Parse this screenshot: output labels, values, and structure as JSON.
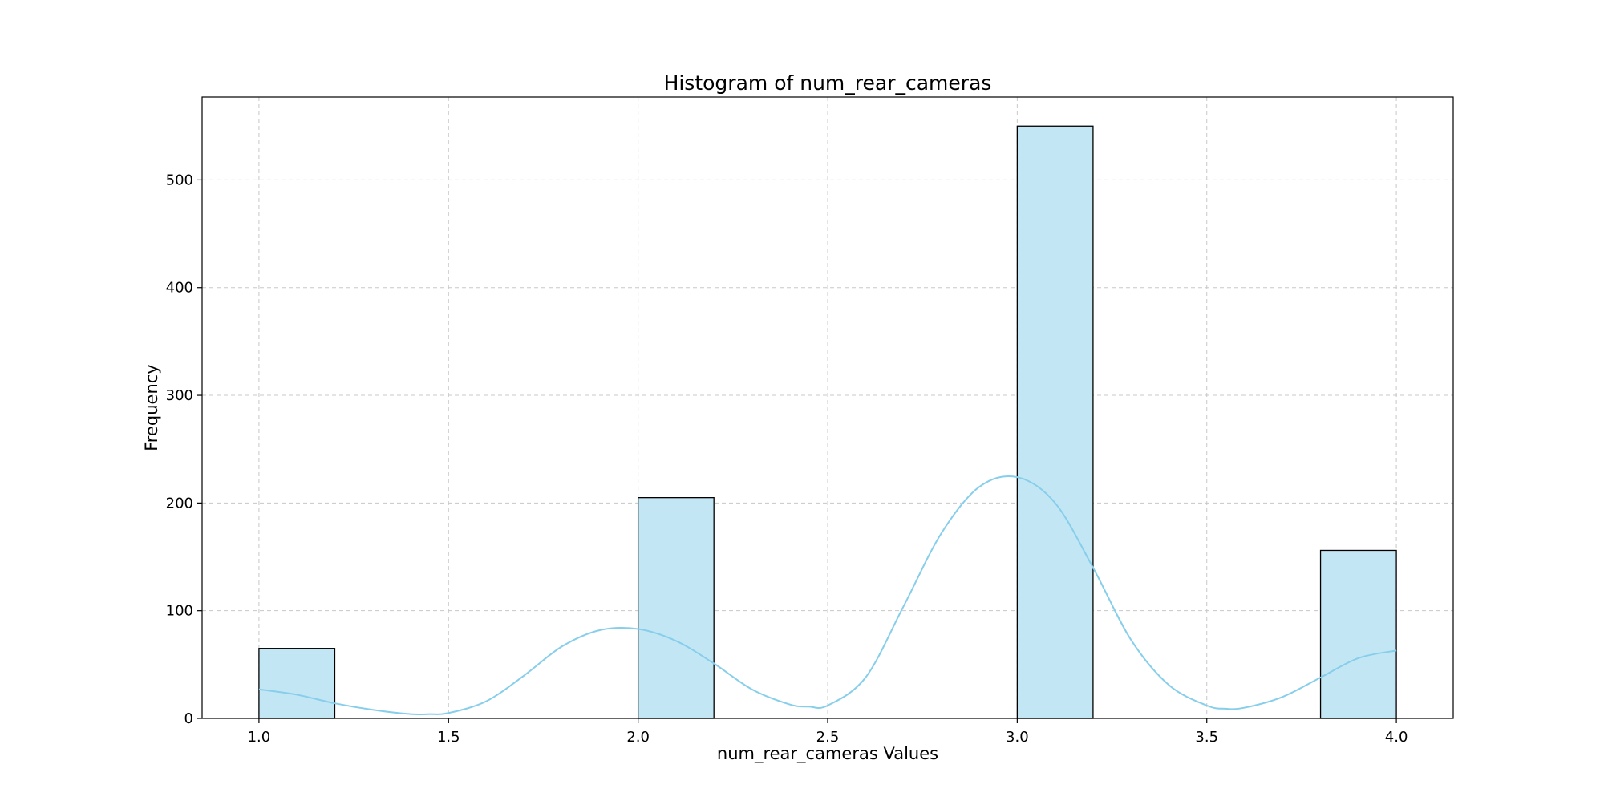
{
  "chart_data": {
    "type": "bar",
    "title": "Histogram of num_rear_cameras",
    "xlabel": "num_rear_cameras Values",
    "ylabel": "Frequency",
    "xlim": [
      0.85,
      4.15
    ],
    "ylim": [
      0,
      577
    ],
    "xticks": [
      1.0,
      1.5,
      2.0,
      2.5,
      3.0,
      3.5,
      4.0
    ],
    "xtick_labels": [
      "1.0",
      "1.5",
      "2.0",
      "2.5",
      "3.0",
      "3.5",
      "4.0"
    ],
    "yticks": [
      0,
      100,
      200,
      300,
      400,
      500
    ],
    "ytick_labels": [
      "0",
      "100",
      "200",
      "300",
      "400",
      "500"
    ],
    "grid": true,
    "bins": [
      {
        "x0": 1.0,
        "x1": 1.2,
        "count": 65
      },
      {
        "x0": 2.0,
        "x1": 2.2,
        "count": 205
      },
      {
        "x0": 3.0,
        "x1": 3.2,
        "count": 550
      },
      {
        "x0": 3.8,
        "x1": 4.0,
        "count": 156
      }
    ],
    "kde": {
      "x": [
        1.0,
        1.1,
        1.2,
        1.3,
        1.4,
        1.45,
        1.5,
        1.6,
        1.7,
        1.8,
        1.9,
        2.0,
        2.1,
        2.2,
        2.3,
        2.4,
        2.45,
        2.5,
        2.6,
        2.7,
        2.8,
        2.9,
        3.0,
        3.1,
        3.2,
        3.3,
        3.4,
        3.5,
        3.55,
        3.6,
        3.7,
        3.8,
        3.9,
        4.0
      ],
      "y": [
        27,
        22,
        14,
        8,
        4,
        4,
        5,
        16,
        40,
        67,
        82,
        83,
        72,
        51,
        27,
        13,
        11,
        12,
        38,
        104,
        172,
        215,
        224,
        200,
        140,
        73,
        31,
        12,
        9,
        10,
        20,
        38,
        56,
        63
      ]
    },
    "colors": {
      "bar_fill": "#c3e6f4",
      "bar_edge": "#000000",
      "kde_line": "#87ceeb",
      "grid": "#c8c8c8"
    }
  }
}
